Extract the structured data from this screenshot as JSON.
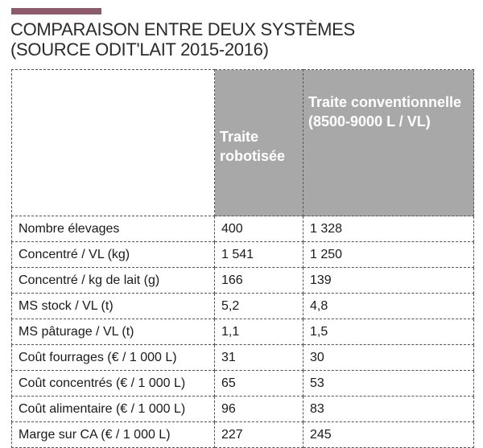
{
  "header": {
    "accent_color": "#8b5a6b",
    "title_line1": "COMPARAISON ENTRE DEUX SYSTÈMES",
    "title_line2": "(SOURCE ODIT'LAIT 2015-2016)"
  },
  "table": {
    "header_bg": "#a8a8a8",
    "columns": [
      "",
      "Traite robotisée",
      "Traite conventionnelle (8500-9000 L / VL)"
    ],
    "rows": [
      {
        "label": "Nombre élevages",
        "robot": "400",
        "conv": "1 328"
      },
      {
        "label": "Concentré / VL (kg)",
        "robot": "1 541",
        "conv": "1 250"
      },
      {
        "label": "Concentré / kg de lait (g)",
        "robot": "166",
        "conv": "139"
      },
      {
        "label": "MS stock / VL (t)",
        "robot": "5,2",
        "conv": "4,8"
      },
      {
        "label": "MS pâturage / VL (t)",
        "robot": "1,1",
        "conv": "1,5"
      },
      {
        "label": "Coût fourrages (€ / 1 000 L)",
        "robot": "31",
        "conv": "30"
      },
      {
        "label": "Coût concentrés (€ / 1 000 L)",
        "robot": "65",
        "conv": "53"
      },
      {
        "label": "Coût alimentaire (€ / 1 000 L)",
        "robot": "96",
        "conv": "83"
      },
      {
        "label": "Marge sur CA (€ / 1 000 L)",
        "robot": "227",
        "conv": "245"
      }
    ]
  }
}
